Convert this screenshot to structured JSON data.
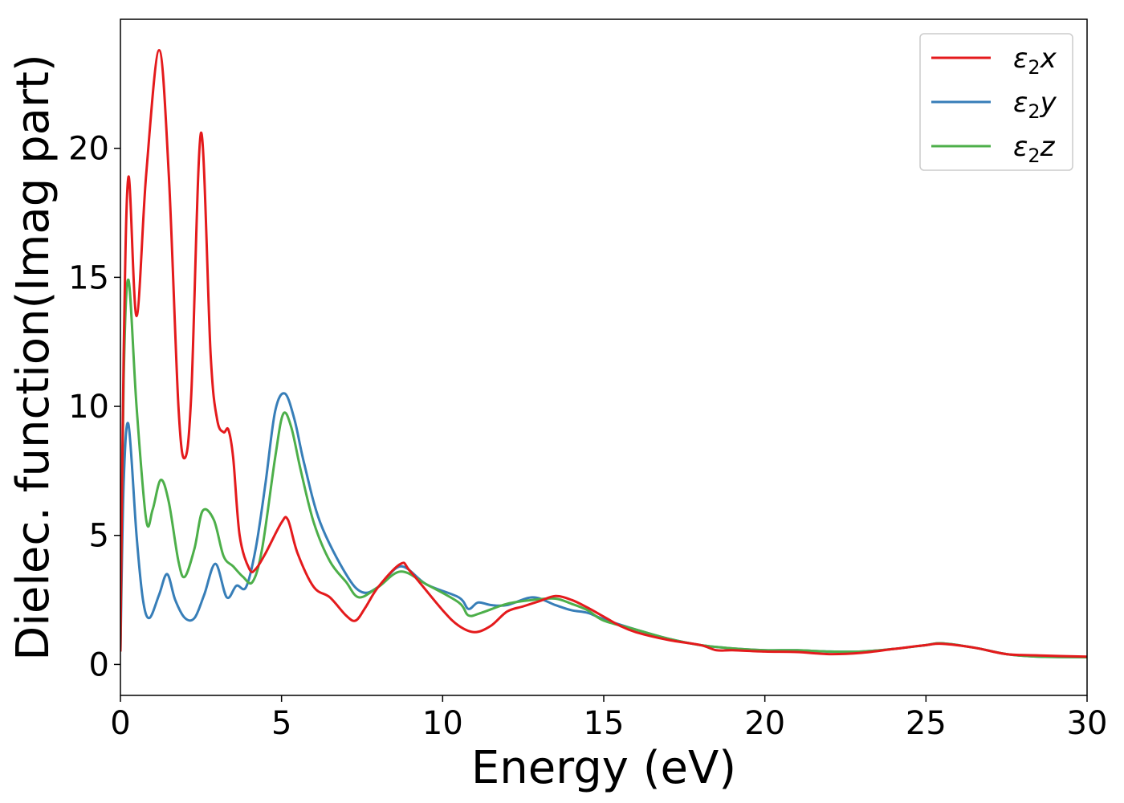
{
  "chart_data": {
    "type": "line",
    "title": "",
    "xlabel": "Energy (eV)",
    "ylabel": "Dielec. function(Imag part)",
    "xlim": [
      0,
      30
    ],
    "ylim": [
      -1.2,
      25
    ],
    "xticks": [
      0,
      5,
      10,
      15,
      20,
      25,
      30
    ],
    "yticks": [
      0,
      5,
      10,
      15,
      20
    ],
    "grid": false,
    "legend_position": "top-right",
    "series": [
      {
        "name": "ε₂x",
        "legend_base": "ε",
        "legend_sub": "2",
        "legend_var": "x",
        "color": "#e41a1c",
        "x": [
          0,
          0.1,
          0.25,
          0.5,
          0.8,
          1.2,
          1.5,
          1.8,
          2.0,
          2.2,
          2.5,
          2.8,
          3.0,
          3.2,
          3.35,
          3.5,
          3.7,
          4.0,
          4.2,
          4.5,
          5.0,
          5.2,
          5.5,
          6.0,
          6.5,
          7.0,
          7.3,
          7.6,
          8.0,
          8.7,
          9.0,
          10.0,
          10.5,
          11.0,
          11.5,
          12.0,
          12.5,
          13.0,
          13.5,
          14.0,
          14.5,
          15.0,
          15.5,
          16.0,
          17.0,
          18.0,
          18.5,
          19.0,
          20.0,
          21.0,
          22.0,
          23.0,
          24.0,
          25.0,
          25.5,
          26.5,
          27.5,
          28.5,
          30.0
        ],
        "y": [
          0.5,
          12.0,
          18.9,
          13.5,
          19.0,
          23.8,
          19.0,
          10.0,
          8.0,
          10.5,
          20.6,
          12.0,
          9.5,
          9.0,
          9.1,
          8.0,
          5.0,
          3.7,
          3.7,
          4.3,
          5.5,
          5.6,
          4.3,
          3.0,
          2.6,
          1.9,
          1.7,
          2.2,
          3.0,
          3.9,
          3.6,
          2.1,
          1.5,
          1.25,
          1.5,
          2.05,
          2.25,
          2.45,
          2.65,
          2.5,
          2.2,
          1.85,
          1.5,
          1.25,
          0.95,
          0.75,
          0.55,
          0.55,
          0.5,
          0.48,
          0.4,
          0.45,
          0.6,
          0.75,
          0.8,
          0.65,
          0.4,
          0.35,
          0.3
        ]
      },
      {
        "name": "ε₂y",
        "legend_base": "ε",
        "legend_sub": "2",
        "legend_var": "y",
        "color": "#377eb8",
        "x": [
          0,
          0.1,
          0.25,
          0.5,
          0.7,
          0.9,
          1.2,
          1.45,
          1.7,
          2.0,
          2.3,
          2.6,
          2.95,
          3.3,
          3.6,
          3.9,
          4.2,
          4.5,
          4.8,
          5.1,
          5.4,
          5.7,
          6.2,
          7.0,
          7.5,
          8.0,
          8.7,
          9.5,
          10.5,
          10.8,
          11.1,
          11.5,
          12.0,
          12.8,
          13.5,
          14.0,
          14.5,
          15.0,
          16.0,
          17.0,
          18.0,
          19.0,
          20.0,
          21.0,
          22.0,
          23.0,
          24.0,
          25.0,
          25.5,
          26.5,
          27.5,
          28.5,
          30.0
        ],
        "y": [
          0.5,
          7.0,
          9.3,
          5.0,
          2.5,
          1.8,
          2.7,
          3.5,
          2.5,
          1.8,
          1.8,
          2.7,
          3.9,
          2.6,
          3.05,
          3.0,
          4.5,
          7.0,
          9.8,
          10.5,
          9.5,
          7.8,
          5.5,
          3.5,
          2.8,
          3.0,
          3.8,
          3.1,
          2.6,
          2.15,
          2.4,
          2.3,
          2.3,
          2.6,
          2.3,
          2.1,
          2.0,
          1.75,
          1.35,
          1.0,
          0.75,
          0.62,
          0.55,
          0.55,
          0.5,
          0.5,
          0.6,
          0.75,
          0.82,
          0.65,
          0.4,
          0.3,
          0.28
        ]
      },
      {
        "name": "ε₂z",
        "legend_base": "ε",
        "legend_sub": "2",
        "legend_var": "z",
        "color": "#4daf4a",
        "x": [
          0,
          0.1,
          0.25,
          0.5,
          0.8,
          1.0,
          1.25,
          1.5,
          1.8,
          2.0,
          2.3,
          2.55,
          2.9,
          3.2,
          3.5,
          3.8,
          4.1,
          4.4,
          4.8,
          5.05,
          5.3,
          5.6,
          6.0,
          6.5,
          7.0,
          7.4,
          8.0,
          8.7,
          9.5,
          10.5,
          10.8,
          11.2,
          12.0,
          12.8,
          13.5,
          14.0,
          14.5,
          15.0,
          16.0,
          17.0,
          18.0,
          19.0,
          20.0,
          21.0,
          22.0,
          23.0,
          24.0,
          25.0,
          25.5,
          26.5,
          27.5,
          28.5,
          30.0
        ],
        "y": [
          0.5,
          11.0,
          14.9,
          10.0,
          5.6,
          6.0,
          7.15,
          6.3,
          4.0,
          3.4,
          4.5,
          5.95,
          5.6,
          4.2,
          3.8,
          3.4,
          3.2,
          4.5,
          8.0,
          9.7,
          9.2,
          7.5,
          5.5,
          4.0,
          3.2,
          2.6,
          3.0,
          3.6,
          3.1,
          2.4,
          1.9,
          2.0,
          2.35,
          2.5,
          2.55,
          2.35,
          2.1,
          1.7,
          1.35,
          1.0,
          0.75,
          0.62,
          0.55,
          0.55,
          0.5,
          0.5,
          0.6,
          0.75,
          0.82,
          0.65,
          0.4,
          0.3,
          0.28
        ]
      }
    ]
  }
}
